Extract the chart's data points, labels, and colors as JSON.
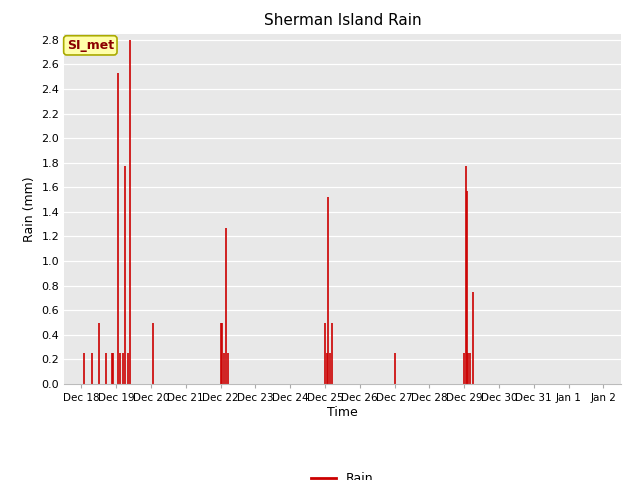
{
  "title": "Sherman Island Rain",
  "xlabel": "Time",
  "ylabel": "Rain (mm)",
  "legend_label": "Rain",
  "legend_text": "SI_met",
  "ylim": [
    0.0,
    2.85
  ],
  "yticks": [
    0.0,
    0.2,
    0.4,
    0.6,
    0.8,
    1.0,
    1.2,
    1.4,
    1.6,
    1.8,
    2.0,
    2.2,
    2.4,
    2.6,
    2.8
  ],
  "line_color": "#cc0000",
  "plot_bg": "#e8e8e8",
  "x_tick_labels": [
    "Dec 18",
    "Dec 19",
    "Dec 20",
    "Dec 21",
    "Dec 22",
    "Dec 23",
    "Dec 24",
    "Dec 25",
    "Dec 26",
    "Dec 27",
    "Dec 28",
    "Dec 29",
    "Dec 30",
    "Dec 31",
    "Jan 1",
    "Jan 2"
  ],
  "x_tick_positions": [
    0,
    1,
    2,
    3,
    4,
    5,
    6,
    7,
    8,
    9,
    10,
    11,
    12,
    13,
    14,
    15
  ],
  "xlim": [
    -0.5,
    15.5
  ],
  "rain_data": [
    [
      0.08,
      0.25
    ],
    [
      0.22,
      0.0
    ],
    [
      0.3,
      0.25
    ],
    [
      0.42,
      0.0
    ],
    [
      0.5,
      0.5
    ],
    [
      0.6,
      0.0
    ],
    [
      0.7,
      0.25
    ],
    [
      0.8,
      0.0
    ],
    [
      0.88,
      0.25
    ],
    [
      0.92,
      0.25
    ],
    [
      1.0,
      0.0
    ],
    [
      1.05,
      2.53
    ],
    [
      1.1,
      0.25
    ],
    [
      1.15,
      0.0
    ],
    [
      1.2,
      0.25
    ],
    [
      1.25,
      1.77
    ],
    [
      1.3,
      0.0
    ],
    [
      1.35,
      0.25
    ],
    [
      1.4,
      2.8
    ],
    [
      1.45,
      0.0
    ],
    [
      2.05,
      0.5
    ],
    [
      3.0,
      0.0
    ],
    [
      4.0,
      0.5
    ],
    [
      4.05,
      0.5
    ],
    [
      4.1,
      0.25
    ],
    [
      4.15,
      1.27
    ],
    [
      4.2,
      0.25
    ],
    [
      4.25,
      0.0
    ],
    [
      7.0,
      0.5
    ],
    [
      7.05,
      0.25
    ],
    [
      7.1,
      1.52
    ],
    [
      7.15,
      0.25
    ],
    [
      7.2,
      0.5
    ],
    [
      9.0,
      0.25
    ],
    [
      11.0,
      0.25
    ],
    [
      11.05,
      1.77
    ],
    [
      11.08,
      1.57
    ],
    [
      11.12,
      0.25
    ],
    [
      11.18,
      0.25
    ],
    [
      11.25,
      0.75
    ]
  ]
}
